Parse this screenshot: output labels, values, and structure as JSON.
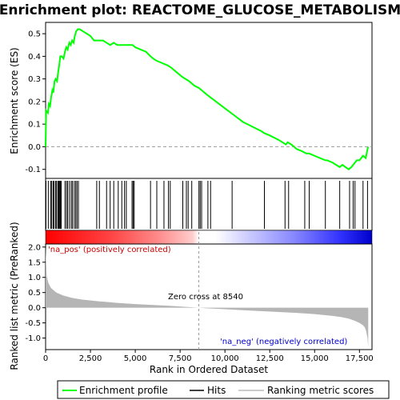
{
  "chart_data": {
    "type": "line",
    "title": "Enrichment plot: REACTOME_GLUCOSE_METABOLISM",
    "xlabel": "Rank in Ordered Dataset",
    "ylabel_top": "Enrichment score (ES)",
    "ylabel_bottom": "Ranked list metric (PreRanked)",
    "xlim": [
      0,
      18200
    ],
    "x_ticks": [
      0,
      2500,
      5000,
      7500,
      10000,
      12500,
      15000,
      17500
    ],
    "x_tick_labels": [
      "0",
      "2,500",
      "5,000",
      "7,500",
      "10,000",
      "12,500",
      "15,000",
      "17,500"
    ],
    "es_ylim": [
      -0.14,
      0.55
    ],
    "es_ticks": [
      -0.1,
      0.0,
      0.1,
      0.2,
      0.3,
      0.4,
      0.5
    ],
    "es_tick_labels": [
      "-0.1",
      "0.0",
      "0.1",
      "0.2",
      "0.3",
      "0.4",
      "0.5"
    ],
    "metric_ylim": [
      -1.38,
      2.1
    ],
    "metric_ticks": [
      -1.0,
      -0.5,
      0.0,
      0.5,
      1.0,
      1.5,
      2.0
    ],
    "metric_tick_labels": [
      "-1.0",
      "-0.5",
      "0.0",
      "0.5",
      "1.0",
      "1.5",
      "2.0"
    ],
    "series": [
      {
        "name": "Enrichment profile",
        "color": "#00ff00",
        "x": [
          0,
          30,
          130,
          180,
          250,
          310,
          380,
          430,
          500,
          560,
          640,
          700,
          760,
          820,
          900,
          1000,
          1080,
          1150,
          1230,
          1320,
          1400,
          1480,
          1560,
          1630,
          1700,
          1800,
          1900,
          2100,
          2300,
          2500,
          2700,
          2850,
          3000,
          3200,
          3400,
          3600,
          3800,
          4000,
          4200,
          4400,
          4550,
          4700,
          4850,
          5000,
          5300,
          5600,
          5850,
          6000,
          6200,
          6500,
          6800,
          7000,
          7300,
          7600,
          8000,
          8300,
          8550,
          8700,
          9000,
          9500,
          10000,
          10500,
          11000,
          11500,
          12000,
          12200,
          12500,
          13000,
          13400,
          13500,
          13700,
          14000,
          14300,
          14550,
          14700,
          15000,
          15300,
          15600,
          15700,
          16000,
          16400,
          16550,
          16900,
          17050,
          17250,
          17350,
          17500,
          17700,
          17850,
          17980
        ],
        "values": [
          0.0,
          0.16,
          0.15,
          0.19,
          0.18,
          0.22,
          0.25,
          0.24,
          0.29,
          0.3,
          0.29,
          0.33,
          0.36,
          0.4,
          0.4,
          0.39,
          0.42,
          0.44,
          0.43,
          0.46,
          0.45,
          0.47,
          0.46,
          0.49,
          0.51,
          0.52,
          0.52,
          0.51,
          0.5,
          0.49,
          0.47,
          0.47,
          0.47,
          0.47,
          0.46,
          0.45,
          0.46,
          0.45,
          0.45,
          0.45,
          0.45,
          0.45,
          0.45,
          0.44,
          0.43,
          0.42,
          0.4,
          0.39,
          0.38,
          0.37,
          0.36,
          0.35,
          0.33,
          0.31,
          0.29,
          0.27,
          0.26,
          0.25,
          0.23,
          0.2,
          0.17,
          0.14,
          0.11,
          0.09,
          0.07,
          0.06,
          0.05,
          0.03,
          0.01,
          0.02,
          0.01,
          -0.01,
          -0.02,
          -0.03,
          -0.03,
          -0.04,
          -0.05,
          -0.06,
          -0.06,
          -0.07,
          -0.09,
          -0.08,
          -0.1,
          -0.09,
          -0.07,
          -0.06,
          -0.06,
          -0.04,
          -0.05,
          0.0
        ]
      }
    ],
    "hits": [
      20,
      150,
      280,
      340,
      420,
      470,
      560,
      610,
      690,
      730,
      780,
      830,
      870,
      1080,
      1160,
      1230,
      1330,
      1430,
      1500,
      1600,
      1680,
      1750,
      1830,
      2850,
      3000,
      3400,
      3600,
      3800,
      4050,
      4250,
      4400,
      4500,
      4820,
      4880,
      4940,
      5850,
      6200,
      6600,
      6850,
      6950,
      7650,
      7850,
      7950,
      8150,
      8550,
      8620,
      8700,
      9050,
      9200,
      10400,
      12200,
      13350,
      13550,
      14450,
      14700,
      15600,
      16400,
      16950,
      17150,
      17250,
      17700,
      17950
    ],
    "metric_curve": {
      "x": [
        0,
        60,
        150,
        300,
        600,
        1000,
        1500,
        2000,
        3000,
        4000,
        5000,
        6000,
        7000,
        8000,
        8540,
        9000,
        10000,
        11000,
        12000,
        13000,
        14000,
        15000,
        15500,
        16000,
        16500,
        16900,
        17200,
        17500,
        17700,
        17800,
        17880,
        17950,
        17990
      ],
      "values": [
        1.98,
        1.05,
        0.82,
        0.65,
        0.5,
        0.4,
        0.32,
        0.27,
        0.21,
        0.16,
        0.12,
        0.09,
        0.06,
        0.02,
        0.0,
        -0.02,
        -0.05,
        -0.08,
        -0.11,
        -0.14,
        -0.17,
        -0.21,
        -0.24,
        -0.27,
        -0.31,
        -0.36,
        -0.42,
        -0.5,
        -0.58,
        -0.65,
        -0.78,
        -1.0,
        -1.3
      ]
    },
    "zero_cross_x": 8540,
    "annotations": {
      "pos": "'na_pos' (positively correlated)",
      "neg": "'na_neg' (negatively correlated)",
      "zero": "Zero cross at 8540"
    },
    "colors": {
      "pos_label": "#cc0000",
      "neg_label": "#0000cc",
      "profile": "#00ff00",
      "hit": "#000000",
      "metric_fill": "#b5b5b5",
      "heat_pos": "#ff0000",
      "heat_neg": "#0000ff"
    },
    "legend": {
      "position": "bottom",
      "items": [
        "Enrichment profile",
        "Hits",
        "Ranking metric scores"
      ]
    }
  }
}
